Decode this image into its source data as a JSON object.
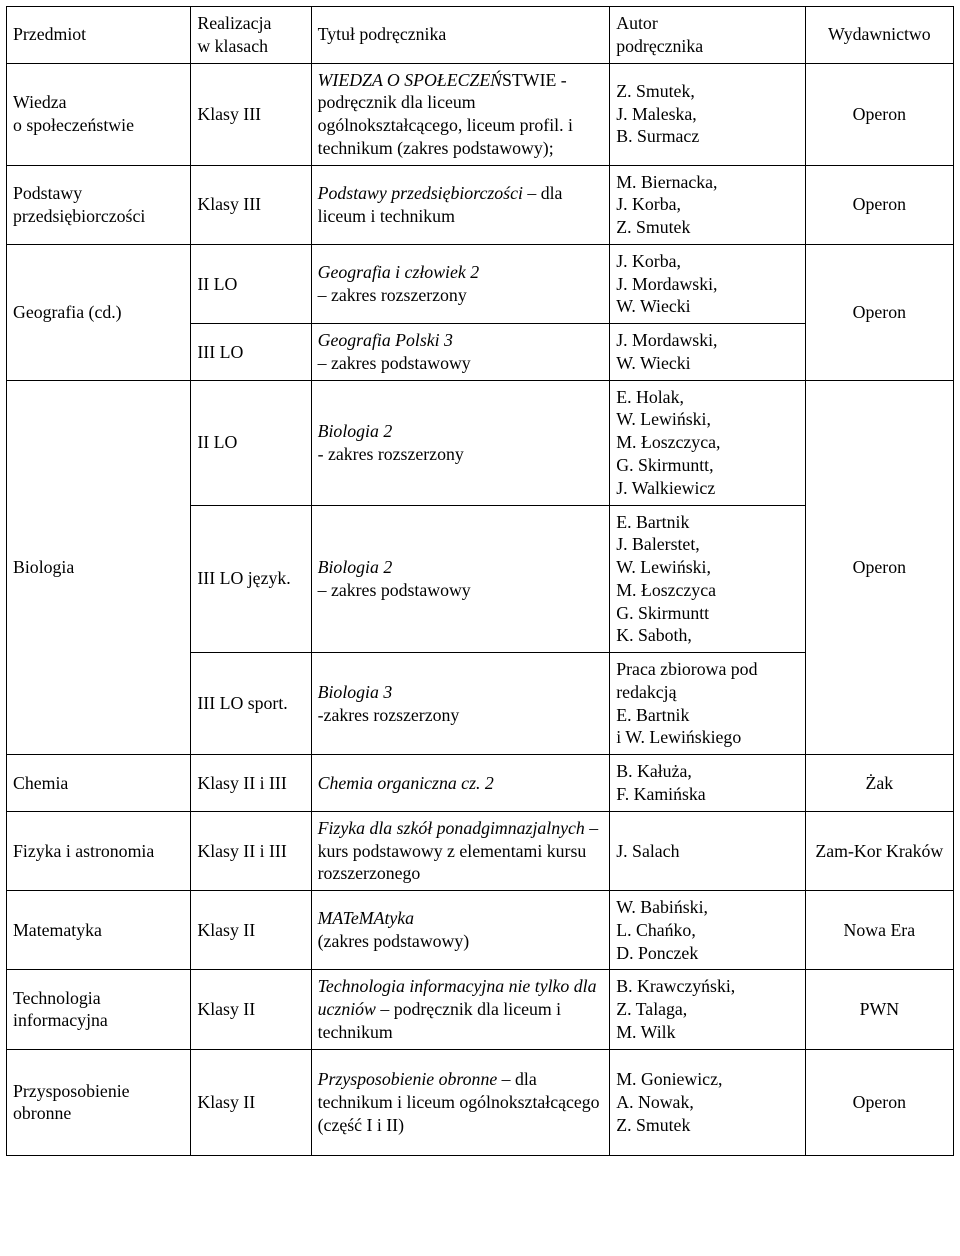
{
  "columns": {
    "subject": "Przedmiot",
    "classes": "Realizacja\nw klasach",
    "title": "Tytuł podręcznika",
    "author": "Autor\npodręcznika",
    "publisher": "Wydawnictwo"
  },
  "rows": {
    "wiedza": {
      "subject": "Wiedza\no społeczeństwie",
      "classes": "Klasy III",
      "title_i": "WIEDZA O SPOŁECZEŃ",
      "title_r": "STWIE - podręcznik dla liceum ogólnokształcącego, liceum profil. i technikum (zakres podstawowy);",
      "author": "Z. Smutek,\nJ. Maleska,\nB. Surmacz",
      "publisher": "Operon"
    },
    "podstawy": {
      "subject": "Podstawy przedsiębiorczości",
      "classes": "Klasy III",
      "title_i": "Podstawy przedsiębiorczości",
      "title_r": " – dla liceum i technikum",
      "author": "M. Biernacka,\nJ. Korba,\nZ. Smutek",
      "publisher": "Operon"
    },
    "geografia": {
      "subject": "Geografia (cd.)",
      "publisher": "Operon",
      "r1": {
        "classes": "II LO",
        "title_i": "Geografia i człowiek 2",
        "title_r": "\n – zakres rozszerzony",
        "author": "J. Korba,\nJ. Mordawski,\nW. Wiecki"
      },
      "r2": {
        "classes": "III LO",
        "title_i": "Geografia Polski  3",
        "title_r": "\n– zakres podstawowy",
        "author": "J. Mordawski,\nW. Wiecki"
      }
    },
    "biologia": {
      "subject": "Biologia",
      "publisher": "Operon",
      "r1": {
        "classes": "II LO",
        "title_i": "Biologia 2",
        "title_r": "\n- zakres rozszerzony",
        "author": "E. Holak,\nW. Lewiński,\nM. Łoszczyca,\nG. Skirmuntt,\nJ. Walkiewicz"
      },
      "r2": {
        "classes": " III LO język.",
        "title_i": "Biologia 2",
        "title_r": "\n – zakres podstawowy",
        "author": "E. Bartnik\nJ. Balerstet,\nW. Lewiński,\nM. Łoszczyca\nG. Skirmuntt\nK. Saboth,"
      },
      "r3": {
        "classes": "III LO sport.",
        "title_i": "Biologia 3",
        "title_r": "\n-zakres rozszerzony",
        "author": "Praca zbiorowa pod redakcją\nE. Bartnik\ni W. Lewińskiego"
      }
    },
    "chemia": {
      "subject": "Chemia",
      "classes": "Klasy II i III",
      "title_i": "Chemia organiczna cz. 2",
      "title_r": "",
      "author": "B. Kałuża,\nF. Kamińska",
      "publisher": "Żak"
    },
    "fizyka": {
      "subject": "Fizyka i astronomia",
      "classes": "Klasy II i III",
      "title_i": "Fizyka dla szkół ponadgimnazjalnych",
      "title_r": " – kurs podstawowy z elementami kursu rozszerzonego",
      "author": "J. Salach",
      "publisher": "Zam-Kor Kraków"
    },
    "matematyka": {
      "subject": "Matematyka",
      "classes": "Klasy II",
      "title_i": "MATeMAtyka",
      "title_r": "\n(zakres podstawowy)",
      "author": "W. Babiński,\nL. Chańko,\nD. Ponczek",
      "publisher": "Nowa Era"
    },
    "techinfo": {
      "subject": "Technologia informacyjna",
      "classes": "Klasy II",
      "title_i": "Technologia informacyjna nie tylko dla uczniów",
      "title_r": " – podręcznik dla liceum i technikum",
      "author": "B.   Krawczyński,\nZ. Talaga,\nM. Wilk",
      "publisher": "PWN"
    },
    "po": {
      "subject": "Przysposobienie obronne",
      "classes": "Klasy  II",
      "title_i": "Przysposobienie obronne",
      "title_r": " – dla technikum i liceum ogólnokształcącego (część I i II)",
      "author": "M. Goniewicz,\nA. Nowak,\nZ. Smutek",
      "publisher": "Operon"
    }
  }
}
